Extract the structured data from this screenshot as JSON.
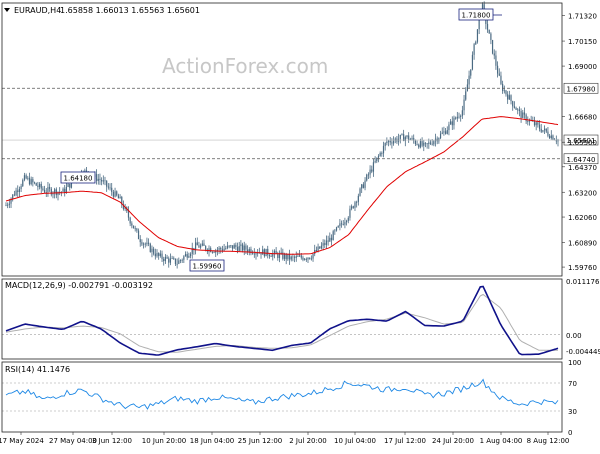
{
  "header": {
    "symbol": "EURAUD,H4",
    "ohlc": "1.65858 1.66013 1.65563 1.65601",
    "watermark": "ActionForex.com"
  },
  "colors": {
    "candle": "#4a6a82",
    "ma": "#e00000",
    "macd": "#10128a",
    "signal": "#b0b0b0",
    "rsi": "#1e88e5",
    "grid": "#666666"
  },
  "chart_data": [
    {
      "type": "candlestick",
      "panel": "price",
      "y_ticks": [
        "1.71320",
        "1.70150",
        "1.69000",
        "1.66680",
        "1.65500",
        "1.64370",
        "1.63200",
        "1.62060",
        "1.60890",
        "1.59760"
      ],
      "ylim": [
        1.5935,
        1.719
      ],
      "current_price": "1.65601",
      "levels": [
        {
          "label": "1.67980",
          "value": 1.6798,
          "style": "dashed"
        },
        {
          "label": "1.64740",
          "value": 1.6474,
          "style": "dashed"
        }
      ],
      "annotations": [
        {
          "label": "1.64180",
          "value": 1.6418,
          "at": "2024-05-31"
        },
        {
          "label": "1.59960",
          "value": 1.5996,
          "at": "2024-06-21"
        },
        {
          "label": "1.71800",
          "value": 1.718,
          "at": "2024-08-05"
        }
      ],
      "series": [
        {
          "name": "close",
          "x_start": "2024-05-17",
          "step_hours": 4,
          "values": [
            1.626,
            1.6385,
            1.6329,
            1.6322,
            1.6418,
            1.6375,
            1.6282,
            1.6108,
            1.6025,
            1.5996,
            1.6075,
            1.6055,
            1.607,
            1.6052,
            1.6037,
            1.6015,
            1.6026,
            1.6102,
            1.6218,
            1.6395,
            1.6552,
            1.6575,
            1.6528,
            1.6595,
            1.67,
            1.718,
            1.681,
            1.6679,
            1.6618,
            1.656
          ]
        },
        {
          "name": "moving_average",
          "values": [
            1.628,
            1.6305,
            1.6315,
            1.6318,
            1.6325,
            1.6318,
            1.6275,
            1.6185,
            1.6112,
            1.6071,
            1.6055,
            1.605,
            1.6048,
            1.6044,
            1.6038,
            1.6035,
            1.6037,
            1.6065,
            1.6125,
            1.6238,
            1.6345,
            1.6415,
            1.6459,
            1.6505,
            1.6575,
            1.6656,
            1.6668,
            1.6658,
            1.6645,
            1.6631
          ]
        }
      ]
    },
    {
      "type": "line",
      "panel": "macd",
      "title": "MACD(12,26,9) -0.002791 -0.003192",
      "y_ticks": [
        "0.011176",
        "0.00",
        "-0.004449"
      ],
      "ylim": [
        -0.005,
        0.0115
      ],
      "series": [
        {
          "name": "macd",
          "values": [
            0.0008,
            0.0022,
            0.0016,
            0.0011,
            0.0028,
            0.0012,
            -0.0017,
            -0.0038,
            -0.0042,
            -0.0031,
            -0.0025,
            -0.0018,
            -0.0024,
            -0.0028,
            -0.0032,
            -0.0022,
            -0.0017,
            0.0012,
            0.0029,
            0.0032,
            0.0028,
            0.0048,
            0.0019,
            0.0018,
            0.0028,
            0.0105,
            0.002,
            -0.0041,
            -0.004,
            -0.0028
          ]
        },
        {
          "name": "signal",
          "values": [
            0.0005,
            0.0012,
            0.0016,
            0.0014,
            0.0018,
            0.0015,
            0.0002,
            -0.0023,
            -0.0035,
            -0.0036,
            -0.003,
            -0.0024,
            -0.0022,
            -0.0026,
            -0.0028,
            -0.0027,
            -0.0021,
            -0.0002,
            0.0018,
            0.0027,
            0.0032,
            0.0045,
            0.0035,
            0.0022,
            0.0025,
            0.0085,
            0.0055,
            -0.0012,
            -0.0032,
            -0.0032
          ]
        }
      ]
    },
    {
      "type": "line",
      "panel": "rsi",
      "title": "RSI(14) 41.1476",
      "y_ticks": [
        "100",
        "70",
        "30",
        "0"
      ],
      "ylim": [
        0,
        100
      ],
      "levels": [
        70,
        30
      ],
      "series": [
        {
          "name": "rsi",
          "values": [
            52,
            58,
            46,
            55,
            60,
            48,
            38,
            35,
            40,
            48,
            44,
            50,
            46,
            42,
            48,
            52,
            55,
            62,
            70,
            66,
            60,
            64,
            52,
            55,
            62,
            73,
            48,
            40,
            44,
            41
          ]
        }
      ]
    }
  ],
  "x_labels": [
    "17 May 2024",
    "27 May 04:00",
    "3 Jun 12:00",
    "10 Jun 20:00",
    "18 Jun 04:00",
    "25 Jun 12:00",
    "2 Jul 20:00",
    "10 Jul 04:00",
    "17 Jul 12:00",
    "24 Jul 20:00",
    "1 Aug 04:00",
    "8 Aug 12:00"
  ]
}
